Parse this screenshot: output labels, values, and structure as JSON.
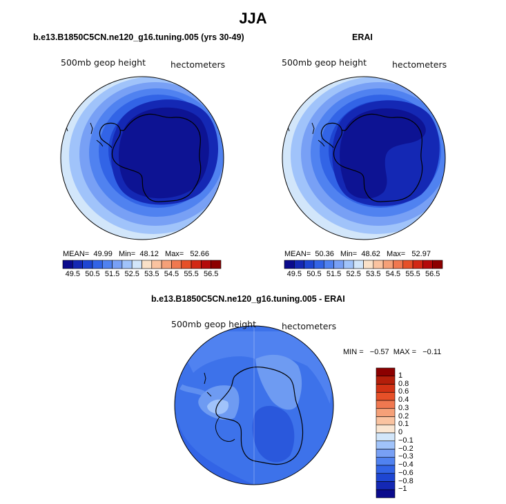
{
  "title": "JJA",
  "panels": [
    {
      "title": "b.e13.B1850C5CN.ne120_g16.tuning.005 (yrs 30-49)",
      "left_label": "500mb geop height",
      "right_label": "hectometers",
      "mean_label": "MEAN=",
      "mean": "49.99",
      "min_label": "Min=",
      "min": "48.12",
      "max_label": "Max=",
      "max": "52.66"
    },
    {
      "title": "ERAI",
      "left_label": "500mb geop height",
      "right_label": "hectometers",
      "mean_label": "MEAN=",
      "mean": "50.36",
      "min_label": "Min=",
      "min": "48.62",
      "max_label": "Max=",
      "max": "52.97"
    }
  ],
  "colorbar": {
    "ticks": [
      "49.5",
      "50.5",
      "51.5",
      "52.5",
      "53.5",
      "54.5",
      "55.5",
      "56.5"
    ],
    "colors": [
      "#0a0a8c",
      "#1428b4",
      "#1e46d2",
      "#3264e6",
      "#5082f0",
      "#78a0f5",
      "#a0c3fa",
      "#d2e6fa",
      "#fae1c8",
      "#fac3a0",
      "#f5a078",
      "#f07850",
      "#e65028",
      "#d22814",
      "#b40a0a",
      "#8c0000"
    ]
  },
  "diff": {
    "title": "b.e13.B1850C5CN.ne120_g16.tuning.005 - ERAI",
    "left_label": "500mb geop height",
    "right_label": "hectometers",
    "minmax": "MIN =   −0.57  MAX =   −0.11",
    "colorbar_labels": [
      "1",
      "0.8",
      "0.6",
      "0.4",
      "0.3",
      "0.2",
      "0.1",
      "0",
      "−0.1",
      "−0.2",
      "−0.3",
      "−0.4",
      "−0.6",
      "−0.8",
      "−1"
    ],
    "colorbar_colors": [
      "#8c0000",
      "#b41e0a",
      "#d23214",
      "#e65028",
      "#f07850",
      "#f5a078",
      "#fac3a0",
      "#fae6d2",
      "#d2e6fa",
      "#a0c3fa",
      "#78a0f5",
      "#5082f0",
      "#3264e6",
      "#1e46d2",
      "#1428b4",
      "#0a0a8c"
    ]
  },
  "colors": {
    "deep": "#0d1393",
    "ring1": "#1428b4",
    "ring2": "#1e46d2",
    "ring3": "#3264e6",
    "ring4": "#5082f0",
    "ring5": "#78a0f5",
    "ring6": "#a0c3fa",
    "diff_bg": "#3d72ea",
    "diff_light": "#6e9bf2",
    "diff_dark": "#2a58dc"
  }
}
